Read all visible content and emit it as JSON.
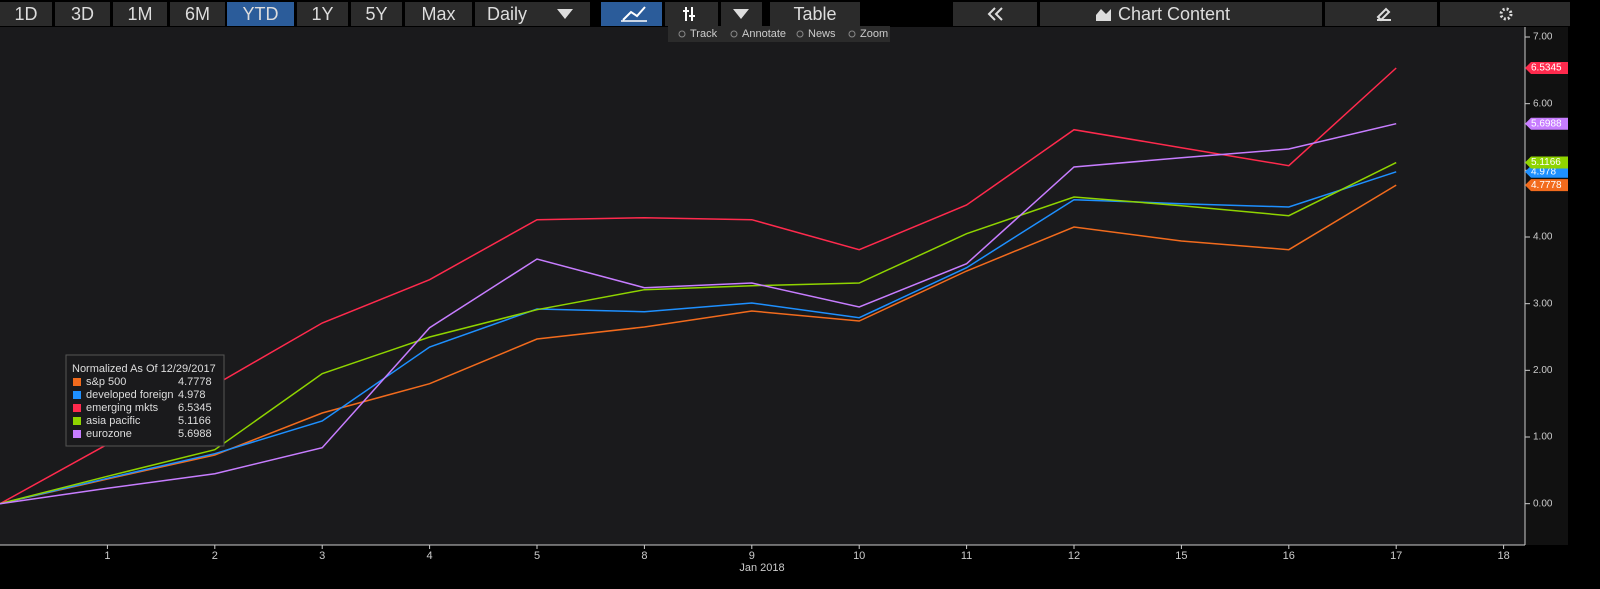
{
  "toolbar": {
    "ranges": [
      "1D",
      "3D",
      "1M",
      "6M",
      "YTD",
      "1Y",
      "5Y",
      "Max"
    ],
    "frequency": "Daily",
    "table": "Table",
    "chart_content": "Chart Content",
    "tools": [
      "Track",
      "Annotate",
      "News",
      "Zoom"
    ]
  },
  "chart_data": {
    "type": "line",
    "legend_title": "Normalized As Of 12/29/2017",
    "xlabel": "Jan 2018",
    "categories": [
      null,
      "1",
      "2",
      "3",
      "4",
      "5",
      "8",
      "9",
      "10",
      "11",
      "12",
      "15",
      "16",
      "17",
      "18"
    ],
    "series": [
      {
        "name": "s&p 500",
        "color": "#f26b1d",
        "values": [
          0,
          0.37,
          0.73,
          1.36,
          1.8,
          2.47,
          2.65,
          2.89,
          2.74,
          3.49,
          4.15,
          3.94,
          3.81,
          4.7778,
          null
        ]
      },
      {
        "name": "developed foreign",
        "color": "#1e90ff",
        "values": [
          0,
          0.38,
          0.75,
          1.24,
          2.35,
          2.92,
          2.88,
          3.01,
          2.79,
          3.54,
          4.56,
          4.5,
          4.45,
          4.978,
          null
        ]
      },
      {
        "name": "emerging mkts",
        "color": "#ff2a4d",
        "values": [
          0,
          0.89,
          1.78,
          2.71,
          3.36,
          4.26,
          4.29,
          4.26,
          3.81,
          4.48,
          5.61,
          5.34,
          5.07,
          6.5345,
          null
        ]
      },
      {
        "name": "asia pacific",
        "color": "#8fd400",
        "values": [
          0,
          0.41,
          0.81,
          1.95,
          2.5,
          2.91,
          3.21,
          3.27,
          3.31,
          4.05,
          4.6,
          4.47,
          4.32,
          5.1166,
          null
        ]
      },
      {
        "name": "eurozone",
        "color": "#c77dff",
        "values": [
          0,
          0.23,
          0.45,
          0.84,
          2.64,
          3.67,
          3.24,
          3.31,
          2.95,
          3.6,
          5.05,
          5.19,
          5.32,
          5.6988,
          null
        ]
      }
    ],
    "ylim": [
      -0.62,
      7.18
    ],
    "yticks": [
      {
        "value": 0,
        "label": "0.00"
      },
      {
        "value": 1,
        "label": "1.00"
      },
      {
        "value": 2,
        "label": "2.00"
      },
      {
        "value": 3,
        "label": "3.00"
      },
      {
        "value": 4,
        "label": "4.00"
      },
      {
        "value": 5,
        "label": "5.00"
      },
      {
        "value": 6,
        "label": "6.00"
      },
      {
        "value": 7,
        "label": "7.00"
      }
    ]
  }
}
